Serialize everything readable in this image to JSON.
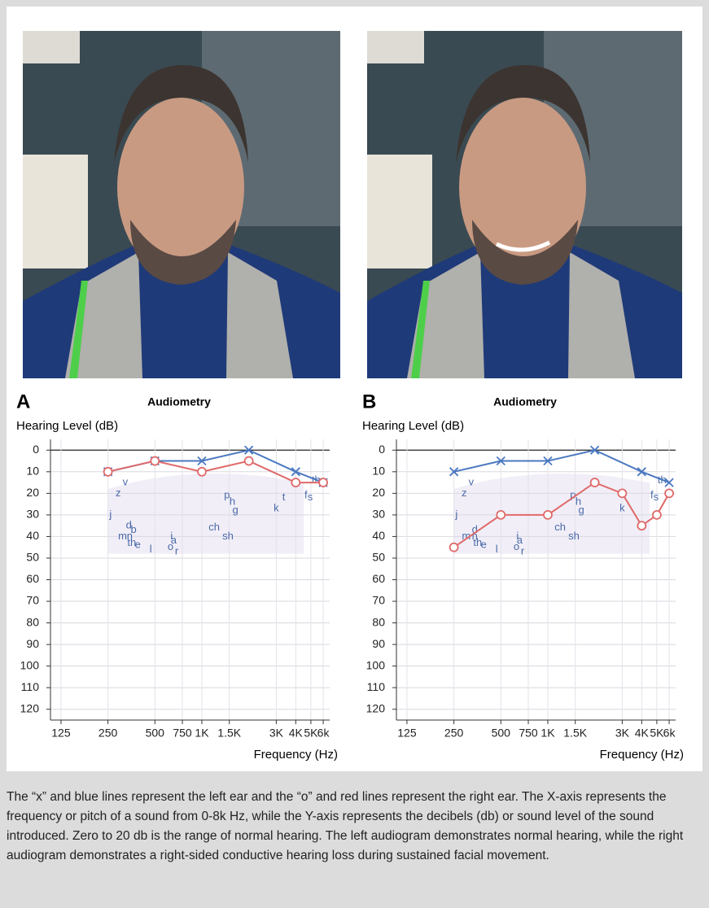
{
  "chart_data": [
    {
      "type": "line",
      "panel_label": "A",
      "title": "Audiometry",
      "y_label": "Hearing Level (dB)",
      "x_label": "Frequency (Hz)",
      "x_scale": "log",
      "xlim": [
        107,
        6600
      ],
      "ylim": [
        -5,
        125
      ],
      "y_inverted": true,
      "grid": true,
      "xticks": [
        125,
        250,
        500,
        750,
        {
          "value": 1000,
          "label": "1K"
        },
        {
          "value": 1500,
          "label": "1.5K"
        },
        {
          "value": 3000,
          "label": "3K"
        },
        {
          "value": 4000,
          "label": "4K"
        },
        {
          "value": 5000,
          "label": "5K"
        },
        {
          "value": 6000,
          "label": "6k"
        }
      ],
      "yticks": [
        0,
        10,
        20,
        30,
        40,
        50,
        60,
        70,
        80,
        90,
        100,
        110,
        120
      ],
      "series": [
        {
          "name": "Left ear",
          "marker": "x",
          "color": "#4a78c0",
          "x": [
            250,
            500,
            1000,
            2000,
            4000,
            6000
          ],
          "values": [
            10,
            5,
            5,
            0,
            10,
            15
          ]
        },
        {
          "name": "Right ear",
          "marker": "o",
          "color": "#e06a6a",
          "x": [
            250,
            500,
            1000,
            2000,
            4000,
            6000
          ],
          "values": [
            10,
            5,
            10,
            5,
            15,
            15
          ]
        }
      ],
      "phonemes": [
        {
          "text": "z",
          "x": 291,
          "y": 20
        },
        {
          "text": "v",
          "x": 323,
          "y": 15
        },
        {
          "text": "j",
          "x": 260,
          "y": 30
        },
        {
          "text": "d",
          "x": 340,
          "y": 35
        },
        {
          "text": "b",
          "x": 365,
          "y": 37
        },
        {
          "text": "m",
          "x": 310,
          "y": 40
        },
        {
          "text": "n",
          "x": 345,
          "y": 40
        },
        {
          "text": "th",
          "x": 355,
          "y": 43
        },
        {
          "text": "e",
          "x": 388,
          "y": 44
        },
        {
          "text": "l",
          "x": 470,
          "y": 46
        },
        {
          "text": "i",
          "x": 640,
          "y": 40
        },
        {
          "text": "a",
          "x": 660,
          "y": 42
        },
        {
          "text": "o",
          "x": 630,
          "y": 45
        },
        {
          "text": "r",
          "x": 690,
          "y": 47
        },
        {
          "text": "ch",
          "x": 1200,
          "y": 36
        },
        {
          "text": "sh",
          "x": 1470,
          "y": 40
        },
        {
          "text": "p",
          "x": 1450,
          "y": 21
        },
        {
          "text": "h",
          "x": 1570,
          "y": 24
        },
        {
          "text": "g",
          "x": 1640,
          "y": 28
        },
        {
          "text": "k",
          "x": 3000,
          "y": 27
        },
        {
          "text": "t",
          "x": 3350,
          "y": 22
        },
        {
          "text": "f",
          "x": 4650,
          "y": 21
        },
        {
          "text": "s",
          "x": 4950,
          "y": 22
        },
        {
          "text": "th",
          "x": 5400,
          "y": 14
        }
      ]
    },
    {
      "type": "line",
      "panel_label": "B",
      "title": "Audiometry",
      "y_label": "Hearing Level (dB)",
      "x_label": "Frequency (Hz)",
      "x_scale": "log",
      "xlim": [
        107,
        6600
      ],
      "ylim": [
        -5,
        125
      ],
      "y_inverted": true,
      "grid": true,
      "xticks": [
        125,
        250,
        500,
        750,
        {
          "value": 1000,
          "label": "1K"
        },
        {
          "value": 1500,
          "label": "1.5K"
        },
        {
          "value": 3000,
          "label": "3K"
        },
        {
          "value": 4000,
          "label": "4K"
        },
        {
          "value": 5000,
          "label": "5K"
        },
        {
          "value": 6000,
          "label": "6k"
        }
      ],
      "yticks": [
        0,
        10,
        20,
        30,
        40,
        50,
        60,
        70,
        80,
        90,
        100,
        110,
        120
      ],
      "series": [
        {
          "name": "Left ear",
          "marker": "x",
          "color": "#4a78c0",
          "x": [
            250,
            500,
            1000,
            2000,
            4000,
            6000
          ],
          "values": [
            10,
            5,
            5,
            0,
            10,
            15
          ]
        },
        {
          "name": "Right ear",
          "marker": "o",
          "color": "#e06a6a",
          "x": [
            250,
            500,
            1000,
            2000,
            3000,
            4000,
            5000,
            6000
          ],
          "values": [
            45,
            30,
            30,
            15,
            20,
            35,
            30,
            20
          ]
        }
      ],
      "phonemes": [
        {
          "text": "z",
          "x": 291,
          "y": 20
        },
        {
          "text": "v",
          "x": 323,
          "y": 15
        },
        {
          "text": "j",
          "x": 260,
          "y": 30
        },
        {
          "text": "d",
          "x": 340,
          "y": 37
        },
        {
          "text": "m",
          "x": 300,
          "y": 40
        },
        {
          "text": "n",
          "x": 340,
          "y": 40
        },
        {
          "text": "th",
          "x": 355,
          "y": 43
        },
        {
          "text": "e",
          "x": 388,
          "y": 44
        },
        {
          "text": "l",
          "x": 470,
          "y": 46
        },
        {
          "text": "i",
          "x": 640,
          "y": 40
        },
        {
          "text": "a",
          "x": 660,
          "y": 42
        },
        {
          "text": "o",
          "x": 630,
          "y": 45
        },
        {
          "text": "r",
          "x": 690,
          "y": 47
        },
        {
          "text": "ch",
          "x": 1200,
          "y": 36
        },
        {
          "text": "sh",
          "x": 1470,
          "y": 40
        },
        {
          "text": "p",
          "x": 1450,
          "y": 21
        },
        {
          "text": "h",
          "x": 1570,
          "y": 24
        },
        {
          "text": "g",
          "x": 1640,
          "y": 28
        },
        {
          "text": "k",
          "x": 3000,
          "y": 27
        },
        {
          "text": "f",
          "x": 4650,
          "y": 21
        },
        {
          "text": "s",
          "x": 4950,
          "y": 22
        },
        {
          "text": "th",
          "x": 5400,
          "y": 14
        }
      ]
    }
  ],
  "caption": "The “x” and blue lines represent the left ear and the “o” and red lines represent the right ear. The X-axis represents the frequency or pitch of a sound from 0-8k Hz, while the Y-axis represents the decibels (db) or sound level of the sound introduced. Zero to 20 db is the range of normal hearing. The left audiogram demonstrates normal hearing, while the right audiogram demonstrates a right-sided conductive hearing loss during sustained facial movement."
}
